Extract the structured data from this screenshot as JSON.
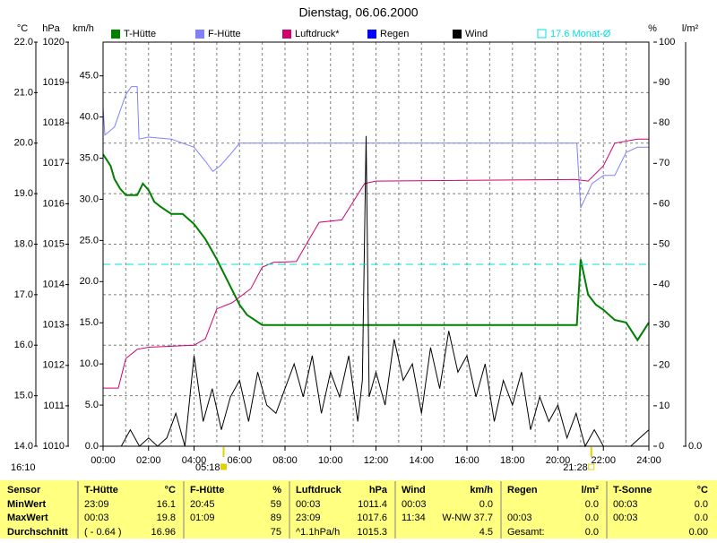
{
  "chart_data": {
    "type": "line",
    "title": "Dienstag, 06.06.2000",
    "time_label": "16:10",
    "grid": true,
    "xlim": [
      0,
      24
    ],
    "xticks": [
      {
        "value": 0,
        "label": "00:00"
      },
      {
        "value": 2,
        "label": "02:00"
      },
      {
        "value": 4,
        "label": "04:00"
      },
      {
        "value": 6,
        "label": "06:00"
      },
      {
        "value": 8,
        "label": "08:00"
      },
      {
        "value": 10,
        "label": "10:00"
      },
      {
        "value": 12,
        "label": "12:00"
      },
      {
        "value": 14,
        "label": "14:00"
      },
      {
        "value": 16,
        "label": "16:00"
      },
      {
        "value": 18,
        "label": "18:00"
      },
      {
        "value": 20,
        "label": "20:00"
      },
      {
        "value": 22,
        "label": "22:00"
      },
      {
        "value": 24,
        "label": "24:00"
      }
    ],
    "xminor": [
      1,
      3,
      5,
      7,
      9,
      11,
      13,
      15,
      17,
      19,
      21,
      23
    ],
    "sunrise": {
      "value": 5.3,
      "label": "05:18"
    },
    "sunset": {
      "value": 21.467,
      "label": "21:28"
    },
    "ylabel": "°C",
    "ylim": [
      14,
      22
    ],
    "yticks": [
      {
        "value": 14,
        "label": "14.0"
      },
      {
        "value": 15,
        "label": "15.0"
      },
      {
        "value": 16,
        "label": "16.0"
      },
      {
        "value": 17,
        "label": "17.0"
      },
      {
        "value": 18,
        "label": "18.0"
      },
      {
        "value": 19,
        "label": "19.0"
      },
      {
        "value": 20,
        "label": "20.0"
      },
      {
        "value": 21,
        "label": "21.0"
      },
      {
        "value": 22,
        "label": "22.0"
      }
    ],
    "y2label": "hPa",
    "y2lim": [
      1010,
      1020
    ],
    "y2ticks": [
      1010,
      1011,
      1012,
      1013,
      1014,
      1015,
      1016,
      1017,
      1018,
      1019,
      1020
    ],
    "y3label": "km/h",
    "y3lim": [
      0,
      49.1
    ],
    "y3ticks": [
      {
        "value": 0,
        "label": "0.0"
      },
      {
        "value": 5,
        "label": "5.0"
      },
      {
        "value": 10,
        "label": "10.0"
      },
      {
        "value": 15,
        "label": "15.0"
      },
      {
        "value": 20,
        "label": "20.0"
      },
      {
        "value": 25,
        "label": "25.0"
      },
      {
        "value": 30,
        "label": "30.0"
      },
      {
        "value": 35,
        "label": "35.0"
      },
      {
        "value": 40,
        "label": "40.0"
      },
      {
        "value": 45,
        "label": "45.0"
      }
    ],
    "y4label": "%",
    "y4lim": [
      0,
      100
    ],
    "y4ticks": [
      0,
      10,
      20,
      30,
      40,
      50,
      60,
      70,
      80,
      90,
      100
    ],
    "y5label": "l/m²",
    "y5lim": [
      0,
      10
    ],
    "y5ticks": [
      {
        "value": 0,
        "label": "0.0"
      }
    ],
    "series": [
      {
        "name": "T-Hütte",
        "color": "#008000",
        "axis": "y",
        "x": [
          0,
          0.33,
          0.5,
          0.75,
          1,
          1.5,
          1.75,
          2,
          2.25,
          2.5,
          3,
          3.5,
          4,
          4.5,
          5,
          5.5,
          6,
          6.33,
          7,
          20.83,
          21,
          21.33,
          21.67,
          22,
          22.5,
          23,
          23.5,
          24
        ],
        "values": [
          19.78,
          19.55,
          19.29,
          19.1,
          18.97,
          18.97,
          19.2,
          19.07,
          18.84,
          18.75,
          18.6,
          18.6,
          18.4,
          18.1,
          17.7,
          17.25,
          16.8,
          16.6,
          16.4,
          16.4,
          17.7,
          17.0,
          16.8,
          16.7,
          16.5,
          16.45,
          16.1,
          16.45
        ]
      },
      {
        "name": "F-Hütte",
        "color": "#8080ff",
        "axis": "y4",
        "x": [
          0,
          0.08,
          0.5,
          1,
          1.25,
          1.5,
          1.58,
          2,
          3,
          3.5,
          4,
          4.5,
          4.83,
          5.17,
          5.67,
          6,
          20.83,
          21,
          21.5,
          22,
          22.5,
          23,
          23.5,
          24
        ],
        "values": [
          84,
          77,
          79,
          87,
          89,
          89,
          76,
          76.5,
          76,
          75,
          74,
          70.5,
          68,
          69.5,
          72.7,
          75,
          75,
          59,
          65,
          67,
          67,
          72.7,
          74,
          74
        ]
      },
      {
        "name": "Luftdruck*",
        "color": "#d0006f",
        "axis": "y2",
        "x": [
          0,
          0.67,
          1,
          1.5,
          2,
          4,
          4.5,
          5,
          5.67,
          6.5,
          7,
          7.5,
          8.5,
          9,
          9.5,
          10.5,
          11,
          11.5,
          12,
          20.75,
          21.33,
          22,
          22.5,
          23.5,
          24
        ],
        "values": [
          1011.44,
          1011.44,
          1012.17,
          1012.4,
          1012.45,
          1012.5,
          1012.66,
          1013.4,
          1013.55,
          1013.9,
          1014.43,
          1014.55,
          1014.57,
          1015.06,
          1015.54,
          1015.6,
          1016.05,
          1016.5,
          1016.56,
          1016.6,
          1016.56,
          1016.94,
          1017.5,
          1017.6,
          1017.6
        ]
      },
      {
        "name": "Regen",
        "color": "#0000ff",
        "axis": "y5",
        "x": [
          0,
          24
        ],
        "values": [
          0,
          0
        ]
      },
      {
        "name": "Wind",
        "color": "#000000",
        "axis": "y3",
        "x": [
          0,
          0.4,
          0.8,
          1.2,
          1.6,
          2.0,
          2.4,
          2.8,
          3.2,
          3.6,
          4.0,
          4.4,
          4.8,
          5.2,
          5.6,
          6.0,
          6.4,
          6.8,
          7.2,
          7.6,
          8.0,
          8.4,
          8.8,
          9.2,
          9.6,
          10.0,
          10.4,
          10.8,
          11.2,
          11.4,
          11.567,
          11.7,
          12.0,
          12.4,
          12.8,
          13.2,
          13.6,
          14.0,
          14.4,
          14.8,
          15.2,
          15.6,
          16.0,
          16.4,
          16.8,
          17.2,
          17.6,
          18.0,
          18.4,
          18.8,
          19.2,
          19.6,
          20.0,
          20.4,
          20.8,
          21.2,
          21.6,
          22.0,
          22.4,
          22.8,
          23.2,
          23.6,
          24.0
        ],
        "values": [
          0,
          0,
          0,
          2,
          0,
          1,
          0,
          1,
          4,
          0,
          11,
          3,
          7,
          2,
          6,
          8,
          3,
          9,
          5,
          4,
          7,
          10,
          6,
          11,
          4,
          9,
          6,
          11,
          3,
          8,
          37.7,
          6,
          9,
          5,
          13,
          8,
          10,
          4,
          12,
          7,
          14,
          9,
          11,
          6,
          10,
          3,
          8,
          5,
          9,
          2,
          6,
          3,
          5,
          1,
          4,
          0,
          2,
          0,
          0,
          0,
          0,
          1,
          2
        ]
      },
      {
        "name": "17.6 Monat-Ø",
        "color": "#00e0e0",
        "axis": "y",
        "dashed": true,
        "x": [
          0,
          24
        ],
        "values": [
          17.6,
          17.6
        ]
      }
    ]
  },
  "table": {
    "header": [
      "Sensor",
      "T-Hütte",
      "°C",
      "F-Hütte",
      "%",
      "Luftdruck",
      "hPa",
      "Wind",
      "km/h",
      "Regen",
      "l/m²",
      "T-Sonne",
      "°C"
    ],
    "rows": [
      [
        "MinWert",
        "23:09",
        "16.1",
        "20:45",
        "59",
        "00:03",
        "1011.4",
        "00:03",
        "0.0",
        null,
        "0.0",
        "00:03",
        "0.0"
      ],
      [
        "MaxWert",
        "00:03",
        "19.8",
        "01:09",
        "89",
        "23:09",
        "1017.6",
        "11:34",
        "W-NW 37.7",
        "00:03",
        "0.0",
        "00:03",
        "0.0"
      ],
      [
        "Durchschnitt",
        "( - 0.64 )",
        "16.96",
        null,
        "75",
        "^1.1hPa/h",
        "1015.3",
        null,
        "4.5",
        "Gesamt:",
        "0.0",
        null,
        "0.00"
      ]
    ]
  }
}
